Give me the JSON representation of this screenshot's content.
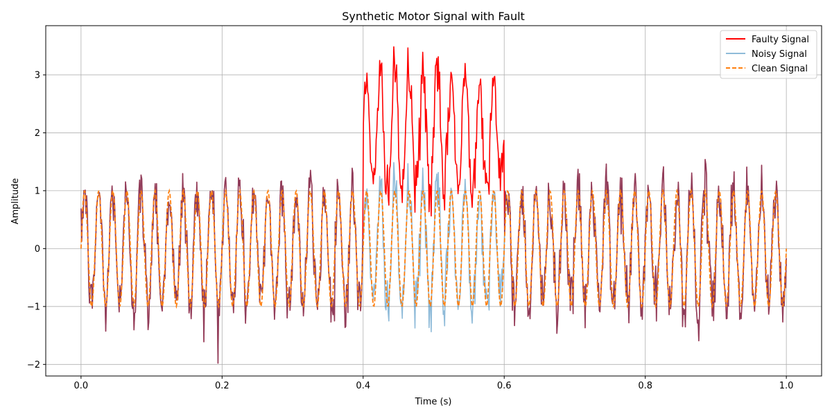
{
  "chart_data": {
    "type": "line",
    "title": "Synthetic Motor Signal with Fault",
    "xlabel": "Time (s)",
    "ylabel": "Amplitude",
    "xlim": [
      -0.05,
      1.05
    ],
    "ylim": [
      -2.2,
      3.85
    ],
    "grid": true,
    "legend_position": "top-right",
    "x_ticks": [
      0.0,
      0.2,
      0.4,
      0.6,
      0.8,
      1.0
    ],
    "x_tick_labels": [
      "0.0",
      "0.2",
      "0.4",
      "0.6",
      "0.8",
      "1.0"
    ],
    "y_ticks": [
      -2,
      -1,
      0,
      1,
      2,
      3
    ],
    "y_tick_labels": [
      "−2",
      "−1",
      "0",
      "1",
      "2",
      "3"
    ],
    "series": [
      {
        "name": "Faulty Signal",
        "color": "#ff0000",
        "style": "solid",
        "fault_window": [
          0.4,
          0.6
        ],
        "fault_offset": 2.0
      },
      {
        "name": "Noisy Signal",
        "color": "#1f77b4",
        "style": "solid",
        "opacity": 0.5
      },
      {
        "name": "Clean Signal",
        "color": "#ff7f0e",
        "style": "dashed"
      }
    ],
    "signal": {
      "x_start": 0.0,
      "x_end": 1.0,
      "samples": 1000,
      "clean_frequency_hz": 50,
      "clean_amplitude": 1.0,
      "noise_std": 0.25
    }
  }
}
